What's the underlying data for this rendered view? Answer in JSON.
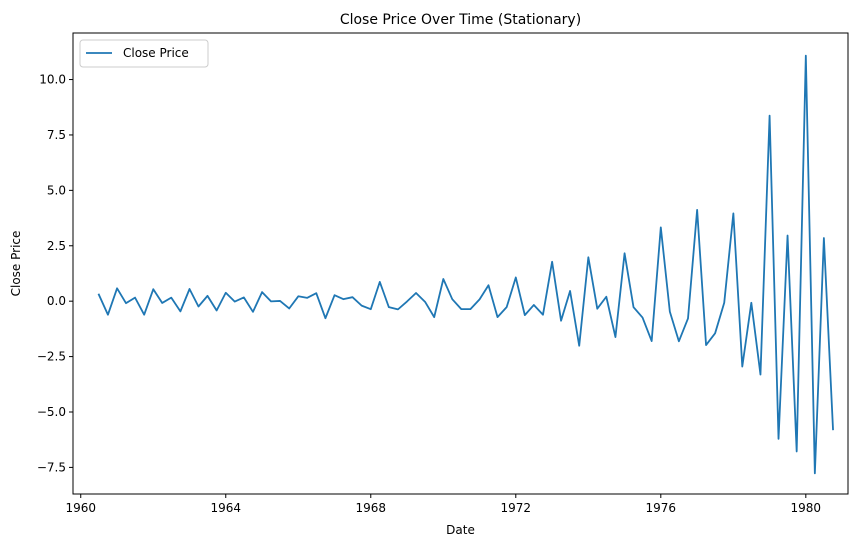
{
  "chart_data": {
    "type": "line",
    "title": "Close Price Over Time (Stationary)",
    "xlabel": "Date",
    "ylabel": "Close Price",
    "xlim": [
      "1959-10-15",
      "1981-03-01"
    ],
    "ylim": [
      -8.7,
      12.1
    ],
    "x_ticks": [
      "1960",
      "1964",
      "1968",
      "1972",
      "1976",
      "1980"
    ],
    "y_ticks": [
      "−7.5",
      "−5.0",
      "−2.5",
      "0.0",
      "2.5",
      "5.0",
      "7.5",
      "10.0"
    ],
    "legend": {
      "position": "top-left",
      "entries": [
        "Close Price"
      ]
    },
    "grid": false,
    "series": [
      {
        "name": "Close Price",
        "color": "#1f77b4",
        "x": [
          "1960-07-01",
          "1960-10-01",
          "1961-01-01",
          "1961-04-01",
          "1961-07-01",
          "1961-10-01",
          "1962-01-01",
          "1962-04-01",
          "1962-07-01",
          "1962-10-01",
          "1963-01-01",
          "1963-04-01",
          "1963-07-01",
          "1963-10-01",
          "1964-01-01",
          "1964-04-01",
          "1964-07-01",
          "1964-10-01",
          "1965-01-01",
          "1965-04-01",
          "1965-07-01",
          "1965-10-01",
          "1966-01-01",
          "1966-04-01",
          "1966-07-01",
          "1966-10-01",
          "1967-01-01",
          "1967-04-01",
          "1967-07-01",
          "1967-10-01",
          "1968-01-01",
          "1968-04-01",
          "1968-07-01",
          "1968-10-01",
          "1969-01-01",
          "1969-04-01",
          "1969-07-01",
          "1969-10-01",
          "1970-01-01",
          "1970-04-01",
          "1970-07-01",
          "1970-10-01",
          "1971-01-01",
          "1971-04-01",
          "1971-07-01",
          "1971-10-01",
          "1972-01-01",
          "1972-04-01",
          "1972-07-01",
          "1972-10-01",
          "1973-01-01",
          "1973-04-01",
          "1973-07-01",
          "1973-10-01",
          "1974-01-01",
          "1974-04-01",
          "1974-07-01",
          "1974-10-01",
          "1975-01-01",
          "1975-04-01",
          "1975-07-01",
          "1975-10-01",
          "1976-01-01",
          "1976-04-01",
          "1976-07-01",
          "1976-10-01",
          "1977-01-01",
          "1977-04-01",
          "1977-07-01",
          "1977-10-01",
          "1978-01-01",
          "1978-04-01",
          "1978-07-01",
          "1978-10-01",
          "1979-01-01",
          "1979-04-01",
          "1979-07-01",
          "1979-10-01",
          "1980-01-01",
          "1980-04-01",
          "1980-07-01",
          "1980-10-01"
        ],
        "values": [
          0.3,
          -0.61,
          0.58,
          -0.09,
          0.16,
          -0.61,
          0.54,
          -0.08,
          0.16,
          -0.46,
          0.55,
          -0.24,
          0.24,
          -0.42,
          0.38,
          -0.02,
          0.17,
          -0.48,
          0.41,
          -0.01,
          0.01,
          -0.33,
          0.22,
          0.15,
          0.36,
          -0.77,
          0.27,
          0.09,
          0.18,
          -0.2,
          -0.36,
          0.87,
          -0.27,
          -0.37,
          -0.01,
          0.37,
          -0.03,
          -0.72,
          1.0,
          0.09,
          -0.36,
          -0.36,
          0.08,
          0.72,
          -0.72,
          -0.27,
          1.07,
          -0.63,
          -0.17,
          -0.61,
          1.78,
          -0.88,
          0.46,
          -2.01,
          1.98,
          -0.34,
          0.2,
          -1.62,
          2.16,
          -0.27,
          -0.74,
          -1.8,
          3.33,
          -0.47,
          -1.81,
          -0.78,
          4.12,
          -1.98,
          -1.45,
          -0.07,
          3.96,
          -2.95,
          -0.07,
          -3.31,
          8.37,
          -6.21,
          2.96,
          -6.78,
          11.08,
          -7.77,
          2.85,
          -5.78
        ]
      }
    ]
  }
}
